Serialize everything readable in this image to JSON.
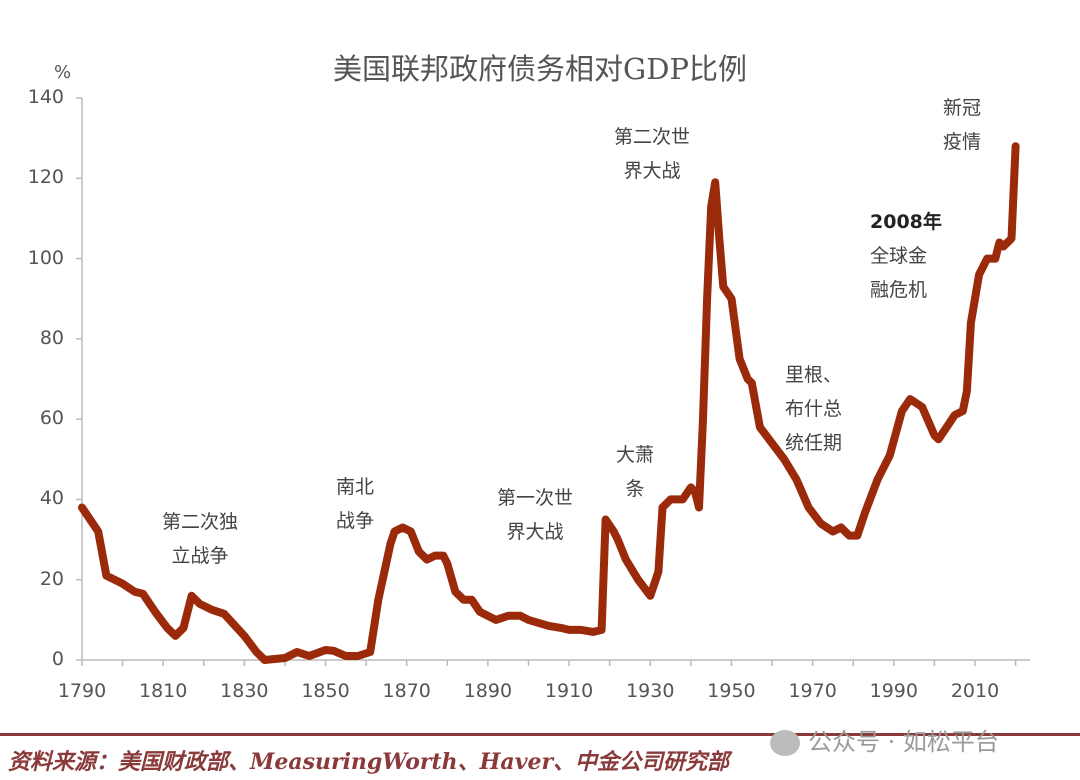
{
  "chart_data": {
    "type": "line",
    "title": "美国联邦政府债务相对GDP比例",
    "ylabel": "%",
    "xlabel": "",
    "xlim": [
      1790,
      2020
    ],
    "ylim": [
      0,
      140
    ],
    "x_ticks": [
      "1790",
      "1810",
      "1830",
      "1850",
      "1870",
      "1890",
      "1910",
      "1930",
      "1950",
      "1970",
      "1990",
      "2010"
    ],
    "y_ticks": [
      "0",
      "20",
      "40",
      "60",
      "80",
      "100",
      "120",
      "140"
    ],
    "grid": false,
    "line_color": "#9a2a0a",
    "x": [
      1790,
      1792,
      1794,
      1796,
      1800,
      1803,
      1805,
      1808,
      1811,
      1813,
      1815,
      1817,
      1819,
      1822,
      1825,
      1830,
      1833,
      1835,
      1840,
      1843,
      1846,
      1850,
      1852,
      1855,
      1858,
      1861,
      1863,
      1866,
      1867,
      1869,
      1871,
      1873,
      1875,
      1877,
      1879,
      1880,
      1882,
      1884,
      1886,
      1888,
      1892,
      1895,
      1898,
      1900,
      1905,
      1908,
      1910,
      1913,
      1916,
      1918,
      1919,
      1921,
      1922,
      1924,
      1927,
      1930,
      1932,
      1933,
      1935,
      1938,
      1940,
      1941,
      1942,
      1943,
      1944,
      1945,
      1946,
      1947,
      1948,
      1950,
      1952,
      1954,
      1955,
      1957,
      1960,
      1963,
      1966,
      1969,
      1972,
      1975,
      1977,
      1979,
      1981,
      1983,
      1986,
      1989,
      1992,
      1994,
      1997,
      2000,
      2001,
      2003,
      2005,
      2007,
      2008,
      2009,
      2011,
      2013,
      2015,
      2016,
      2017,
      2019,
      2020
    ],
    "values": [
      38,
      35,
      32,
      21,
      19,
      17,
      16.5,
      12,
      8,
      6,
      8,
      16,
      14,
      12.5,
      11.5,
      6,
      2,
      0,
      0.5,
      2,
      1,
      2.5,
      2.3,
      1,
      1,
      2,
      15,
      29,
      32,
      33,
      32,
      27,
      25,
      26,
      26,
      24,
      17,
      15,
      15,
      12,
      10,
      11,
      11,
      10,
      8.5,
      8,
      7.5,
      7.5,
      7,
      7.5,
      35,
      32,
      30,
      25,
      20,
      16,
      22,
      38,
      40,
      40,
      43,
      42,
      38,
      60,
      90,
      113,
      119,
      105,
      93,
      90,
      75,
      70,
      69,
      58,
      54,
      50,
      45,
      38,
      34,
      32,
      33,
      31,
      31,
      37,
      45,
      51,
      62,
      65,
      63,
      56,
      55,
      58,
      61,
      62,
      67,
      84,
      96,
      100,
      100,
      104,
      103,
      105,
      128
    ],
    "annotations": [
      {
        "lines": [
          "第二次独",
          "立战争"
        ]
      },
      {
        "lines": [
          "南北",
          "战争"
        ]
      },
      {
        "lines": [
          "第一次世",
          "界大战"
        ]
      },
      {
        "lines": [
          "大萧",
          "条"
        ]
      },
      {
        "lines": [
          "第二次世",
          "界大战"
        ]
      },
      {
        "lines": [
          "里根、",
          "布什总",
          "统任期"
        ]
      },
      {
        "lines": [
          "2008年",
          "全球金",
          "融危机"
        ]
      },
      {
        "lines": [
          "新冠",
          "疫情"
        ]
      }
    ]
  },
  "source": "资料来源：美国财政部、MeasuringWorth、Haver、中金公司研究部",
  "watermark": "公众号 · 如松平台"
}
